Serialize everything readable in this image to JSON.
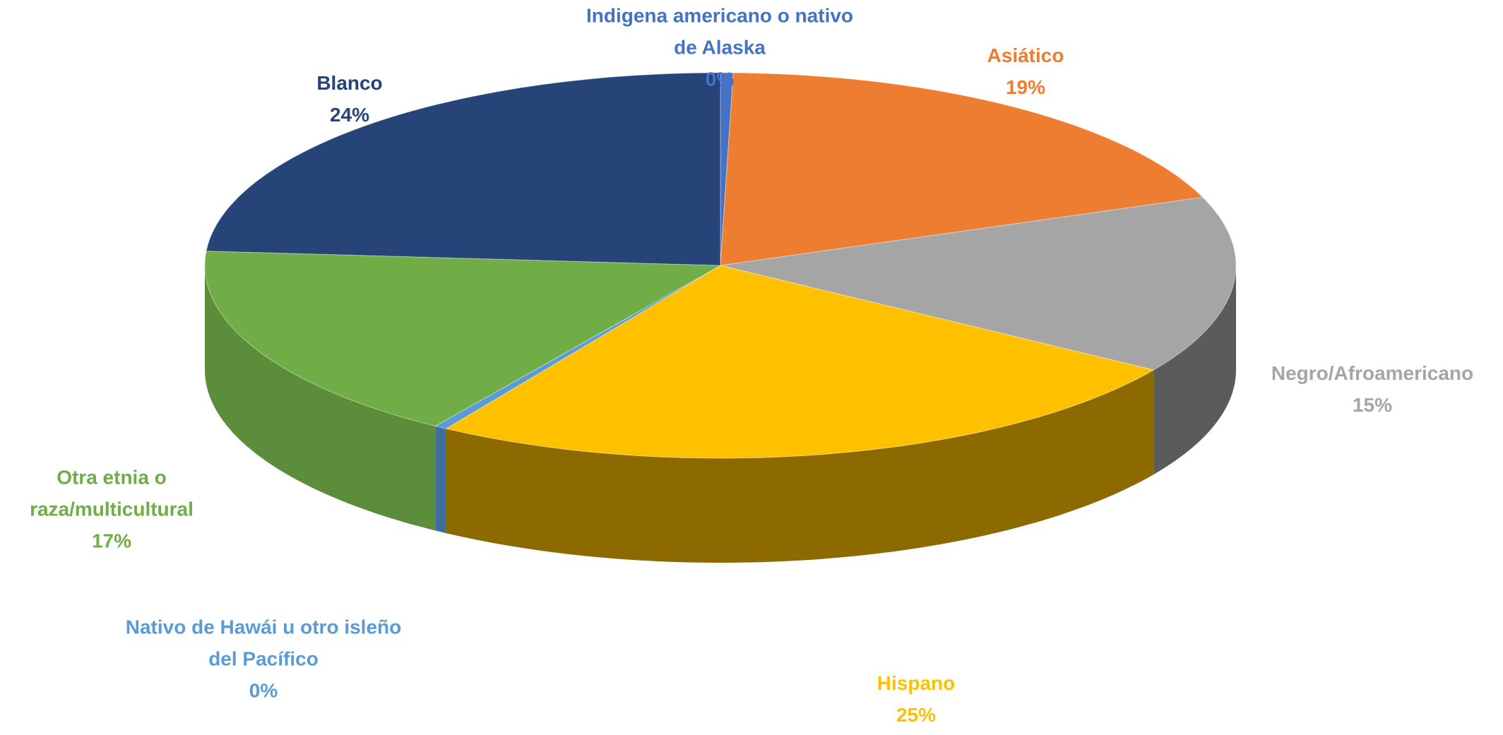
{
  "chart_data": {
    "type": "pie3d",
    "categories": [
      "Indigena americano o nativo de Alaska",
      "Asiático",
      "Negro/Afroamericano",
      "Hispano",
      "Nativo de Hawái u otro isleño del Pacífico",
      "Otra etnia o raza/multicultural",
      "Blanco"
    ],
    "values": [
      0.4,
      19,
      15,
      25,
      0.4,
      17,
      24
    ],
    "value_labels": [
      "0%",
      "19%",
      "15%",
      "25%",
      "0%",
      "17%",
      "24%"
    ],
    "colors": [
      "#4472c4",
      "#ed7d31",
      "#a5a5a5",
      "#ffc000",
      "#5b9bd5",
      "#70ad47",
      "#264478"
    ]
  }
}
